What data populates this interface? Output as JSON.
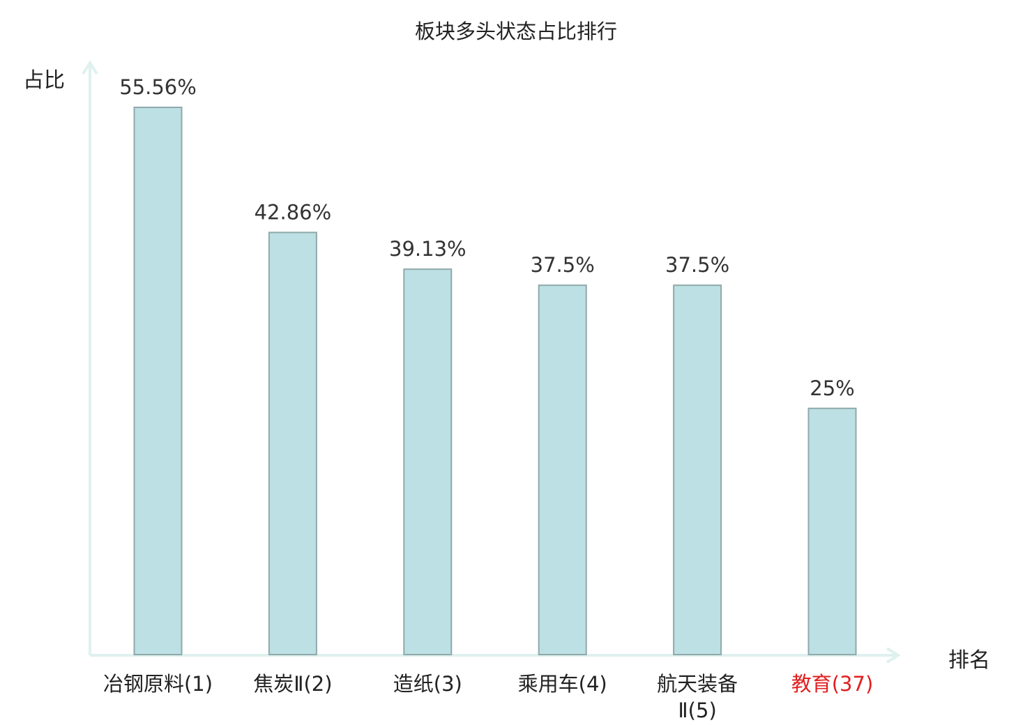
{
  "chart_data": {
    "type": "bar",
    "title": "板块多头状态占比排行",
    "ylabel": "占比",
    "xlabel": "排名",
    "categories": [
      "冶钢原料(1)",
      "焦炭Ⅱ(2)",
      "造纸(3)",
      "乘用车(4)",
      "航天装备Ⅱ(5)",
      "教育(37)"
    ],
    "values": [
      55.56,
      42.86,
      39.13,
      37.5,
      37.5,
      25
    ],
    "value_labels": [
      "55.56%",
      "42.86%",
      "39.13%",
      "37.5%",
      "37.5%",
      "25%"
    ],
    "highlight_index": 5,
    "ylim": [
      0,
      55.56
    ],
    "grid": false,
    "colors": {
      "bar_fill": "#bce0e3",
      "bar_stroke": "#8fa9ab",
      "axis": "#dff1ef",
      "highlight_label": "#e02020"
    }
  }
}
